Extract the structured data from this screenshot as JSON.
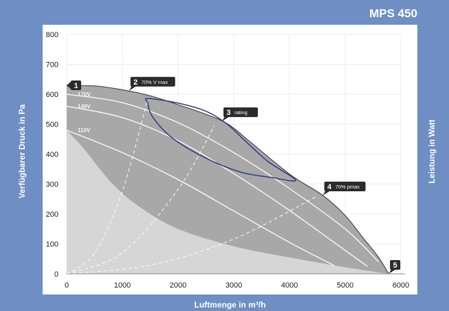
{
  "colors": {
    "frame": "#6E8EC4",
    "panel": "#FFFFFF",
    "envelope_light": "#D6D6D6",
    "envelope_dark": "#A8A8A8",
    "envelope_edge": "#4A4A4A",
    "grid": "#ECECEC",
    "curve": "#FFFFFF",
    "rating_outline": "#2E3A86",
    "marker": "#2B2B2B",
    "tick_text": "#1A1A1A"
  },
  "chart_data": {
    "type": "line",
    "title": "MPS 450",
    "xlabel": "Luftmenge in m³/h",
    "ylabel": "Verfügbarer Druck in Pa",
    "y2label": "Leistung in Watt",
    "xlim": [
      0,
      6000
    ],
    "ylim": [
      0,
      800
    ],
    "xticks": [
      0,
      1000,
      2000,
      3000,
      4000,
      5000,
      6000
    ],
    "yticks": [
      0,
      100,
      200,
      300,
      400,
      500,
      600,
      700,
      800
    ],
    "grid": true,
    "envelope": {
      "max_curve": [
        [
          0,
          628
        ],
        [
          500,
          628
        ],
        [
          1000,
          615
        ],
        [
          1500,
          595
        ],
        [
          2000,
          565
        ],
        [
          2500,
          533
        ],
        [
          2900,
          500
        ],
        [
          3300,
          440
        ],
        [
          3700,
          378
        ],
        [
          4100,
          320
        ],
        [
          4600,
          262
        ],
        [
          5000,
          195
        ],
        [
          5300,
          125
        ],
        [
          5600,
          55
        ],
        [
          5780,
          0
        ]
      ],
      "min_curve": [
        [
          0,
          480
        ],
        [
          300,
          420
        ],
        [
          800,
          305
        ],
        [
          1300,
          225
        ],
        [
          2000,
          150
        ],
        [
          3000,
          92
        ],
        [
          4000,
          55
        ],
        [
          5000,
          22
        ],
        [
          5780,
          0
        ]
      ]
    },
    "series": [
      {
        "name": "170V",
        "points": [
          [
            0,
            600
          ],
          [
            1000,
            572
          ],
          [
            2000,
            505
          ],
          [
            3000,
            405
          ],
          [
            4000,
            285
          ],
          [
            5000,
            150
          ],
          [
            5600,
            40
          ]
        ]
      },
      {
        "name": "140V",
        "points": [
          [
            0,
            560
          ],
          [
            1000,
            522
          ],
          [
            2000,
            445
          ],
          [
            3000,
            335
          ],
          [
            4000,
            212
          ],
          [
            4800,
            105
          ],
          [
            5400,
            25
          ]
        ]
      },
      {
        "name": "110V",
        "points": [
          [
            0,
            480
          ],
          [
            1000,
            405
          ],
          [
            2000,
            315
          ],
          [
            3000,
            210
          ],
          [
            4000,
            105
          ],
          [
            4800,
            28
          ]
        ]
      }
    ],
    "system_curves": [
      [
        [
          0,
          0
        ],
        [
          500,
          69
        ],
        [
          1000,
          276
        ],
        [
          1450,
          580
        ]
      ],
      [
        [
          0,
          0
        ],
        [
          1000,
          70
        ],
        [
          2000,
          282
        ],
        [
          2650,
          495
        ]
      ],
      [
        [
          0,
          0
        ],
        [
          1500,
          29
        ],
        [
          3000,
          116
        ],
        [
          4500,
          260
        ]
      ]
    ],
    "rating_zone": [
      [
        1457,
        586
      ],
      [
        2012,
        570
      ],
      [
        2506,
        543
      ],
      [
        2877,
        501
      ],
      [
        3247,
        437
      ],
      [
        3617,
        375
      ],
      [
        4111,
        313
      ],
      [
        3679,
        322
      ],
      [
        3123,
        340
      ],
      [
        2506,
        386
      ],
      [
        1889,
        455
      ],
      [
        1543,
        524
      ],
      [
        1457,
        570
      ]
    ],
    "markers": [
      {
        "id": "1",
        "x": 0,
        "y": 630
      },
      {
        "id": "2",
        "label": "70% V max",
        "x": 1120,
        "y": 612
      },
      {
        "id": "3",
        "label": "rating",
        "x": 2790,
        "y": 510
      },
      {
        "id": "4",
        "label": "70% pmax",
        "x": 4600,
        "y": 262
      },
      {
        "id": "5",
        "x": 5780,
        "y": 0
      }
    ]
  }
}
